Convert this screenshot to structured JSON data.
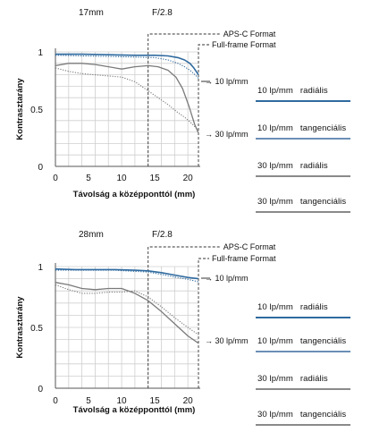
{
  "chart_data": [
    {
      "type": "line",
      "focal_length": "17mm",
      "aperture": "F/2.8",
      "xlabel": "Távolság a középponttól (mm)",
      "ylabel": "Kontrasztarány",
      "xlim": [
        0,
        21.6
      ],
      "ylim": [
        0,
        1
      ],
      "x_ticks": [
        "0",
        "5",
        "10",
        "15",
        "20"
      ],
      "y_ticks": [
        "0",
        "0.5",
        "1"
      ],
      "grid": true,
      "markers": {
        "aps_c_x": 14,
        "full_frame_x": 21.6
      },
      "format_labels": {
        "aps_c": "APS-C Format",
        "full_frame": "Full-frame Format"
      },
      "curve_labels": {
        "freq10": "10 lp/mm",
        "freq30": "30 lp/mm"
      },
      "series": [
        {
          "name": "10 lp/mm radiális",
          "color": "#2f6a9f",
          "style": "solid",
          "width": 1.6,
          "x": [
            0,
            4,
            8,
            12,
            15,
            17,
            18.5,
            19.5,
            20.3,
            20.9,
            21.6
          ],
          "y": [
            0.98,
            0.98,
            0.975,
            0.97,
            0.97,
            0.965,
            0.95,
            0.93,
            0.9,
            0.86,
            0.8
          ]
        },
        {
          "name": "10 lp/mm tangenciális",
          "color": "#2f6a9f",
          "style": "dotted",
          "width": 1.1,
          "x": [
            0,
            4,
            8,
            12,
            15,
            17,
            18.5,
            19.5,
            20.3,
            20.9,
            21.6
          ],
          "y": [
            0.97,
            0.965,
            0.96,
            0.955,
            0.95,
            0.93,
            0.9,
            0.87,
            0.84,
            0.81,
            0.77
          ]
        },
        {
          "name": "30 lp/mm radiális",
          "color": "#7a7a7a",
          "style": "solid",
          "width": 1.3,
          "x": [
            0,
            2,
            4,
            6,
            8,
            10,
            12,
            14,
            15.5,
            17,
            18.2,
            19.2,
            20.2,
            21,
            21.6
          ],
          "y": [
            0.88,
            0.9,
            0.9,
            0.89,
            0.87,
            0.85,
            0.87,
            0.88,
            0.87,
            0.84,
            0.78,
            0.68,
            0.52,
            0.37,
            0.29
          ]
        },
        {
          "name": "30 lp/mm tangenciális",
          "color": "#7a7a7a",
          "style": "dotted",
          "width": 1.1,
          "x": [
            0,
            2,
            4,
            6,
            8,
            10,
            12,
            14,
            15.5,
            17,
            18.5,
            19.5,
            20.3,
            21,
            21.6
          ],
          "y": [
            0.86,
            0.83,
            0.81,
            0.8,
            0.79,
            0.78,
            0.74,
            0.66,
            0.6,
            0.54,
            0.47,
            0.43,
            0.39,
            0.35,
            0.31
          ]
        }
      ]
    },
    {
      "type": "line",
      "focal_length": "28mm",
      "aperture": "F/2.8",
      "xlabel": "Távolság a középponttól (mm)",
      "ylabel": "Kontrasztarány",
      "xlim": [
        0,
        21.6
      ],
      "ylim": [
        0,
        1
      ],
      "x_ticks": [
        "0",
        "5",
        "10",
        "15",
        "20"
      ],
      "y_ticks": [
        "0",
        "0.5",
        "1"
      ],
      "grid": true,
      "markers": {
        "aps_c_x": 14,
        "full_frame_x": 21.6
      },
      "format_labels": {
        "aps_c": "APS-C Format",
        "full_frame": "Full-frame Format"
      },
      "curve_labels": {
        "freq10": "10 lp/mm",
        "freq30": "30 lp/mm"
      },
      "series": [
        {
          "name": "10 lp/mm radiális",
          "color": "#2f6a9f",
          "style": "solid",
          "width": 1.6,
          "x": [
            0,
            3,
            6,
            9,
            12,
            14,
            16,
            18,
            20,
            21.6
          ],
          "y": [
            0.98,
            0.975,
            0.975,
            0.975,
            0.97,
            0.965,
            0.95,
            0.93,
            0.91,
            0.9
          ]
        },
        {
          "name": "10 lp/mm tangenciális",
          "color": "#2f6a9f",
          "style": "dotted",
          "width": 1.1,
          "x": [
            0,
            3,
            6,
            9,
            12,
            14,
            16,
            18,
            20,
            21.6
          ],
          "y": [
            0.97,
            0.97,
            0.97,
            0.97,
            0.96,
            0.955,
            0.935,
            0.915,
            0.895,
            0.875
          ]
        },
        {
          "name": "30 lp/mm radiális",
          "color": "#7a7a7a",
          "style": "solid",
          "width": 1.3,
          "x": [
            0,
            2,
            4,
            6,
            8,
            10,
            12,
            14,
            16,
            18,
            20,
            21.6
          ],
          "y": [
            0.87,
            0.85,
            0.82,
            0.81,
            0.82,
            0.82,
            0.78,
            0.72,
            0.63,
            0.53,
            0.43,
            0.37
          ]
        },
        {
          "name": "30 lp/mm tangenciális",
          "color": "#7a7a7a",
          "style": "dotted",
          "width": 1.1,
          "x": [
            0,
            2,
            4,
            6,
            8,
            10,
            12,
            14,
            16,
            18,
            20,
            21.6
          ],
          "y": [
            0.85,
            0.81,
            0.78,
            0.78,
            0.79,
            0.79,
            0.8,
            0.75,
            0.67,
            0.58,
            0.5,
            0.44
          ]
        }
      ]
    }
  ],
  "legend": [
    {
      "freq": "10 lp/mm",
      "type": "radiális",
      "line_color": "#2f6a9f"
    },
    {
      "freq": "10 lp/mm",
      "type": "tangenciális",
      "line_color": "#6a8fb6"
    },
    {
      "freq": "30 lp/mm",
      "type": "radiális",
      "line_color": "#8a8a8a"
    },
    {
      "freq": "30 lp/mm",
      "type": "tangenciális",
      "line_color": "#8a8a8a"
    }
  ]
}
